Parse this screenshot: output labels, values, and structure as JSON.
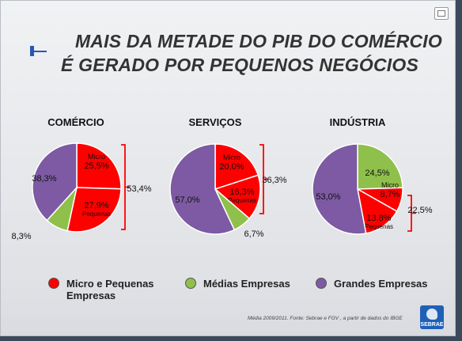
{
  "title": {
    "line1": "MAIS DA METADE DO PIB DO COMÉRCIO",
    "line2": "É GERADO POR PEQUENOS NEGÓCIOS"
  },
  "colors": {
    "micro": "#ff0000",
    "medias": "#8fc04b",
    "grandes": "#7d5aa3"
  },
  "chart_data": [
    {
      "type": "pie",
      "title": "COMÉRCIO",
      "slices": [
        {
          "name": "Micro e Pequenas Empresas",
          "sub": "Micro",
          "value": 25.5,
          "label": "25,5%"
        },
        {
          "name": "Micro e Pequenas Empresas",
          "sub": "Pequenas",
          "value": 27.9,
          "label": "27,9%"
        },
        {
          "name": "Médias Empresas",
          "value": 8.3,
          "label": "8,3%"
        },
        {
          "name": "Grandes Empresas",
          "value": 38.3,
          "label": "38,3%"
        }
      ],
      "bracket_label": "53,4%"
    },
    {
      "type": "pie",
      "title": "SERVIÇOS",
      "slices": [
        {
          "name": "Micro e Pequenas Empresas",
          "sub": "Micro",
          "value": 20.0,
          "label": "20,0%"
        },
        {
          "name": "Micro e Pequenas Empresas",
          "sub": "Pequenas",
          "value": 16.3,
          "label": "16,3%"
        },
        {
          "name": "Médias Empresas",
          "value": 6.7,
          "label": "6,7%"
        },
        {
          "name": "Grandes Empresas",
          "value": 57.0,
          "label": "57,0%"
        }
      ],
      "bracket_label": "36,3%"
    },
    {
      "type": "pie",
      "title": "INDÚSTRIA",
      "slices": [
        {
          "name": "Médias Empresas",
          "value": 24.5,
          "label": "24,5%"
        },
        {
          "name": "Micro e Pequenas Empresas",
          "sub": "Micro",
          "value": 8.7,
          "label": "8,7%"
        },
        {
          "name": "Micro e Pequenas Empresas",
          "sub": "Pequenas",
          "value": 13.8,
          "label": "13,8%"
        },
        {
          "name": "Grandes Empresas",
          "value": 53.0,
          "label": "53,0%"
        }
      ],
      "bracket_label": "22,5%"
    }
  ],
  "legend": [
    {
      "label": "Micro e Pequenas",
      "label2": "Empresas",
      "color_key": "micro"
    },
    {
      "label": "Médias Empresas",
      "color_key": "medias"
    },
    {
      "label": "Grandes Empresas",
      "color_key": "grandes"
    }
  ],
  "source": "Média 2009/2011. Fonte: Sebrae e FGV , a partir de dados do IBGE",
  "logo_text": "SEBRAE"
}
